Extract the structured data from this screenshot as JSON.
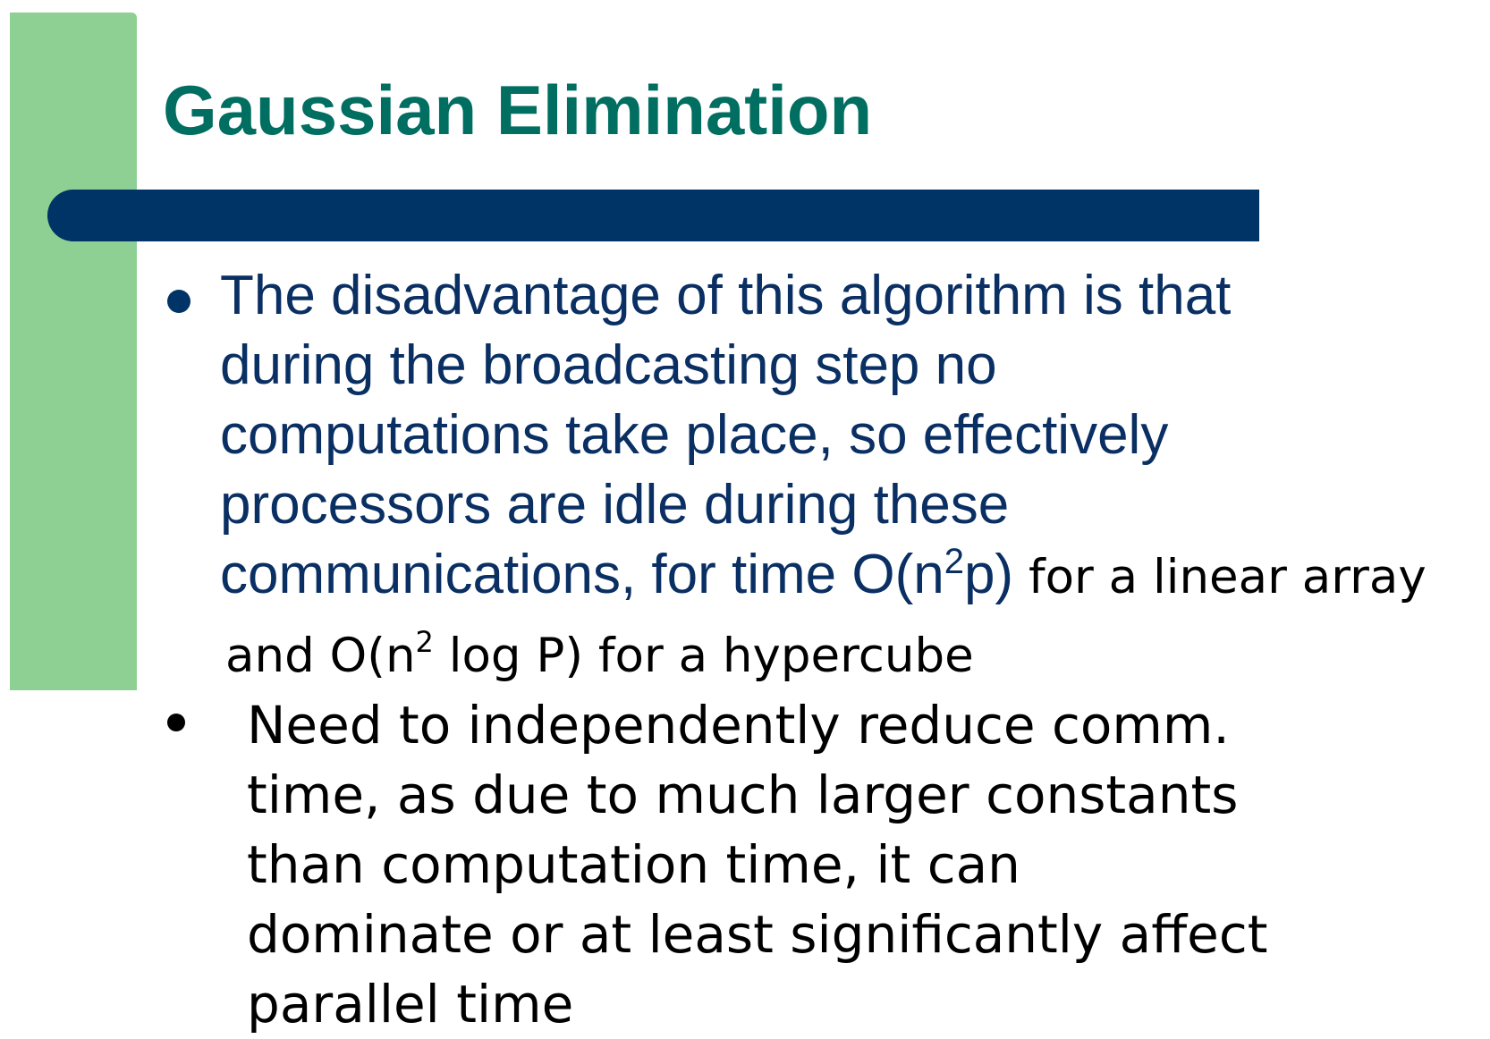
{
  "slide": {
    "title": "Gaussian Elimination",
    "colors": {
      "accent_strip": "#8ed093",
      "title": "#006e60",
      "rule_bar": "#003366",
      "bullet_text": "#0a2f63",
      "body_text": "#000000"
    },
    "bullet1": {
      "lines": [
        "The disadvantage of this algorithm is that",
        "during the broadcasting step no",
        "computations take place, so effectively",
        "processors are idle during these"
      ],
      "last_line_start": "communications, for time O(n",
      "last_line_sup": "2",
      "last_line_after_sup": "p)",
      "last_line_black": " for a linear array",
      "continuation_start": "and O(n",
      "continuation_sup": "2",
      "continuation_end": " log P) for a hypercube"
    },
    "bullet2": {
      "lines": [
        "Need to independently reduce comm.",
        "time, as due to much larger constants",
        "than computation time, it can",
        "dominate or at least significantly affect",
        "parallel time"
      ]
    }
  }
}
